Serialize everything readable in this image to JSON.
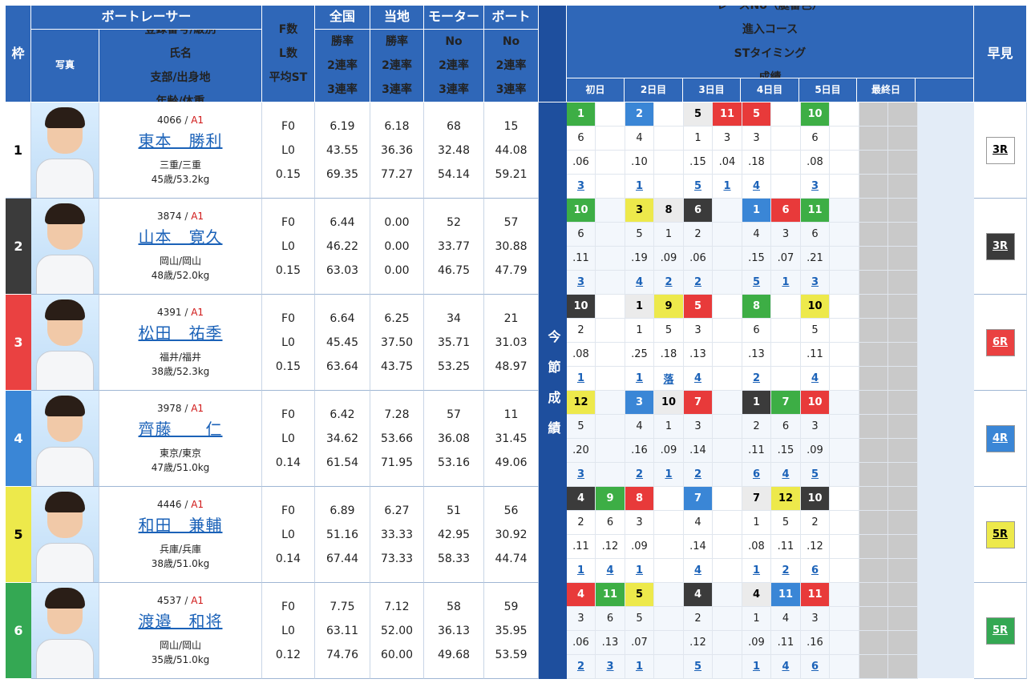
{
  "header": {
    "waku": "枠",
    "racer": "ボートレーサー",
    "photo": "写真",
    "info": [
      "登録番号/級別",
      "氏名",
      "支部/出身地",
      "年齢/体重"
    ],
    "fstats": [
      "F数",
      "L数",
      "平均ST"
    ],
    "zenkoku": "全国",
    "touchi": "当地",
    "motor": "モーター",
    "boat": "ボート",
    "rate_labels": [
      "勝率",
      "2連率",
      "3連率"
    ],
    "no_labels": [
      "No",
      "2連率",
      "3連率"
    ],
    "konsetsu": "今節成績",
    "race_info": [
      "レースNo（艇番色）",
      "進入コース",
      "STタイミング",
      "成績"
    ],
    "days": [
      "初日",
      "2日目",
      "3日目",
      "4日目",
      "5日目",
      "最終日"
    ],
    "hayami": "早見"
  },
  "racers": [
    {
      "waku": "1",
      "reg": "4066",
      "cls": "A1",
      "name": "東本　勝利",
      "branch": "三重/三重",
      "agewt": "45歳/53.2kg",
      "f": "F0",
      "l": "L0",
      "st": "0.15",
      "nat": [
        "6.19",
        "43.55",
        "69.35"
      ],
      "loc": [
        "6.18",
        "36.36",
        "77.27"
      ],
      "motor": [
        "68",
        "32.48",
        "54.14"
      ],
      "boat": [
        "15",
        "44.08",
        "59.21"
      ],
      "hayami": "3R",
      "races": [
        {
          "race": "1",
          "color": "cg",
          "course": "6",
          "st": ".06",
          "res": "3"
        },
        null,
        {
          "race": "2",
          "color": "cb",
          "course": "4",
          "st": ".10",
          "res": "1"
        },
        null,
        {
          "race": "5",
          "color": "cl",
          "course": "1",
          "st": ".15",
          "res": "5"
        },
        {
          "race": "11",
          "color": "cr",
          "course": "3",
          "st": ".04",
          "res": "1"
        },
        {
          "race": "5",
          "color": "cr",
          "course": "3",
          "st": ".18",
          "res": "4"
        },
        null,
        {
          "race": "10",
          "color": "cg",
          "course": "6",
          "st": ".08",
          "res": "3"
        },
        null,
        null,
        null
      ]
    },
    {
      "waku": "2",
      "reg": "3874",
      "cls": "A1",
      "name": "山本　寛久",
      "branch": "岡山/岡山",
      "agewt": "48歳/52.0kg",
      "f": "F0",
      "l": "L0",
      "st": "0.15",
      "nat": [
        "6.44",
        "46.22",
        "63.03"
      ],
      "loc": [
        "0.00",
        "0.00",
        "0.00"
      ],
      "motor": [
        "52",
        "33.77",
        "46.75"
      ],
      "boat": [
        "57",
        "30.88",
        "47.79"
      ],
      "hayami": "3R",
      "races": [
        {
          "race": "10",
          "color": "cg",
          "course": "6",
          "st": ".11",
          "res": "3"
        },
        null,
        {
          "race": "3",
          "color": "cy",
          "course": "5",
          "st": ".19",
          "res": "4"
        },
        {
          "race": "8",
          "color": "cl",
          "course": "1",
          "st": ".09",
          "res": "2"
        },
        {
          "race": "6",
          "color": "ck",
          "course": "2",
          "st": ".06",
          "res": "2"
        },
        null,
        {
          "race": "1",
          "color": "cb",
          "course": "4",
          "st": ".15",
          "res": "5"
        },
        {
          "race": "6",
          "color": "cr",
          "course": "3",
          "st": ".07",
          "res": "1"
        },
        {
          "race": "11",
          "color": "cg",
          "course": "6",
          "st": ".21",
          "res": "3"
        },
        null,
        null,
        null
      ]
    },
    {
      "waku": "3",
      "reg": "4391",
      "cls": "A1",
      "name": "松田　祐季",
      "branch": "福井/福井",
      "agewt": "38歳/52.3kg",
      "f": "F0",
      "l": "L0",
      "st": "0.15",
      "nat": [
        "6.64",
        "45.45",
        "63.64"
      ],
      "loc": [
        "6.25",
        "37.50",
        "43.75"
      ],
      "motor": [
        "34",
        "35.71",
        "53.25"
      ],
      "boat": [
        "21",
        "31.03",
        "48.97"
      ],
      "hayami": "6R",
      "races": [
        {
          "race": "10",
          "color": "ck",
          "course": "2",
          "st": ".08",
          "res": "1"
        },
        null,
        {
          "race": "1",
          "color": "cl",
          "course": "1",
          "st": ".25",
          "res": "1"
        },
        {
          "race": "9",
          "color": "cy",
          "course": "5",
          "st": ".18",
          "res": "落"
        },
        {
          "race": "5",
          "color": "cr",
          "course": "3",
          "st": ".13",
          "res": "4"
        },
        null,
        {
          "race": "8",
          "color": "cg",
          "course": "6",
          "st": ".13",
          "res": "2"
        },
        null,
        {
          "race": "10",
          "color": "cy",
          "course": "5",
          "st": ".11",
          "res": "4"
        },
        null,
        null,
        null
      ]
    },
    {
      "waku": "4",
      "reg": "3978",
      "cls": "A1",
      "name": "齊藤　　仁",
      "branch": "東京/東京",
      "agewt": "47歳/51.0kg",
      "f": "F0",
      "l": "L0",
      "st": "0.14",
      "nat": [
        "6.42",
        "34.62",
        "61.54"
      ],
      "loc": [
        "7.28",
        "53.66",
        "71.95"
      ],
      "motor": [
        "57",
        "36.08",
        "53.16"
      ],
      "boat": [
        "11",
        "31.45",
        "49.06"
      ],
      "hayami": "4R",
      "races": [
        {
          "race": "12",
          "color": "cy",
          "course": "5",
          "st": ".20",
          "res": "3"
        },
        null,
        {
          "race": "3",
          "color": "cb",
          "course": "4",
          "st": ".16",
          "res": "2"
        },
        {
          "race": "10",
          "color": "cl",
          "course": "1",
          "st": ".09",
          "res": "1"
        },
        {
          "race": "7",
          "color": "cr",
          "course": "3",
          "st": ".14",
          "res": "2"
        },
        null,
        {
          "race": "1",
          "color": "ck",
          "course": "2",
          "st": ".11",
          "res": "6"
        },
        {
          "race": "7",
          "color": "cg",
          "course": "6",
          "st": ".15",
          "res": "4"
        },
        {
          "race": "10",
          "color": "cr",
          "course": "3",
          "st": ".09",
          "res": "5"
        },
        null,
        null,
        null
      ]
    },
    {
      "waku": "5",
      "reg": "4446",
      "cls": "A1",
      "name": "和田　兼輔",
      "branch": "兵庫/兵庫",
      "agewt": "38歳/51.0kg",
      "f": "F0",
      "l": "L0",
      "st": "0.14",
      "nat": [
        "6.89",
        "51.16",
        "67.44"
      ],
      "loc": [
        "6.27",
        "33.33",
        "73.33"
      ],
      "motor": [
        "51",
        "42.95",
        "58.33"
      ],
      "boat": [
        "56",
        "30.92",
        "44.74"
      ],
      "hayami": "5R",
      "races": [
        {
          "race": "4",
          "color": "ck",
          "course": "2",
          "st": ".11",
          "res": "1"
        },
        {
          "race": "9",
          "color": "cg",
          "course": "6",
          "st": ".12",
          "res": "4"
        },
        {
          "race": "8",
          "color": "cr",
          "course": "3",
          "st": ".09",
          "res": "1"
        },
        null,
        {
          "race": "7",
          "color": "cb",
          "course": "4",
          "st": ".14",
          "res": "4"
        },
        null,
        {
          "race": "7",
          "color": "cl",
          "course": "1",
          "st": ".08",
          "res": "1"
        },
        {
          "race": "12",
          "color": "cy",
          "course": "5",
          "st": ".11",
          "res": "2"
        },
        {
          "race": "10",
          "color": "ck",
          "course": "2",
          "st": ".12",
          "res": "6"
        },
        null,
        null,
        null
      ]
    },
    {
      "waku": "6",
      "reg": "4537",
      "cls": "A1",
      "name": "渡邉　和将",
      "branch": "岡山/岡山",
      "agewt": "35歳/51.0kg",
      "f": "F0",
      "l": "L0",
      "st": "0.12",
      "nat": [
        "7.75",
        "63.11",
        "74.76"
      ],
      "loc": [
        "7.12",
        "52.00",
        "60.00"
      ],
      "motor": [
        "58",
        "36.13",
        "49.68"
      ],
      "boat": [
        "59",
        "35.95",
        "53.59"
      ],
      "hayami": "5R",
      "races": [
        {
          "race": "4",
          "color": "cr",
          "course": "3",
          "st": ".06",
          "res": "2"
        },
        {
          "race": "11",
          "color": "cg",
          "course": "6",
          "st": ".13",
          "res": "3"
        },
        {
          "race": "5",
          "color": "cy",
          "course": "5",
          "st": ".07",
          "res": "1"
        },
        null,
        {
          "race": "4",
          "color": "ck",
          "course": "2",
          "st": ".12",
          "res": "5"
        },
        null,
        {
          "race": "4",
          "color": "cl",
          "course": "1",
          "st": ".09",
          "res": "1"
        },
        {
          "race": "11",
          "color": "cb",
          "course": "4",
          "st": ".11",
          "res": "4"
        },
        {
          "race": "11",
          "color": "cr",
          "course": "3",
          "st": ".16",
          "res": "6"
        },
        null,
        null,
        null
      ]
    }
  ],
  "colors": {
    "waku": [
      "#ffffff",
      "#3b3b3b",
      "#ea4141",
      "#3a86d6",
      "#ede94b",
      "#34a853"
    ],
    "waku_text": [
      "#000000",
      "#ffffff",
      "#ffffff",
      "#ffffff",
      "#000000",
      "#ffffff"
    ],
    "header": "#2f67b8",
    "link": "#1b62b8"
  }
}
